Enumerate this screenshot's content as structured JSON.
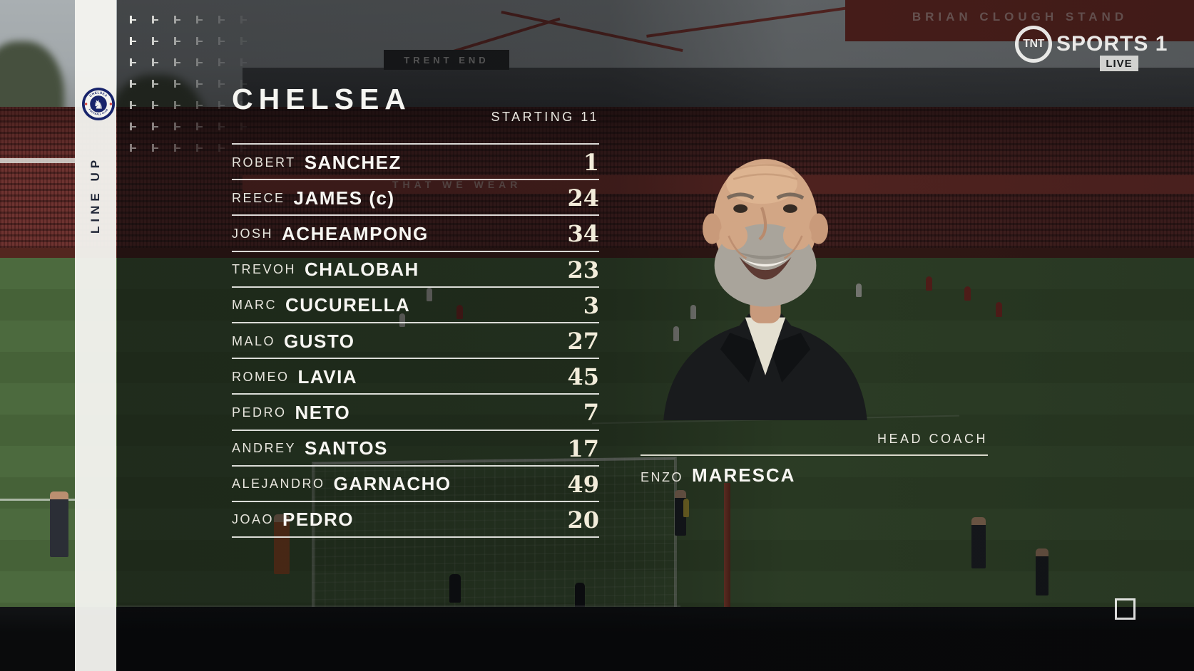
{
  "broadcaster": {
    "network": "TNT",
    "channel": "SPORTS 1",
    "live_label": "LIVE"
  },
  "sidebar": {
    "label": "LINE UP",
    "badge": {
      "top_text": "CHELSEA",
      "bottom_text": "FOOTBALL CLUB"
    }
  },
  "lineup": {
    "team": "CHELSEA",
    "list_label": "STARTING 11",
    "captain_suffix": "(c)",
    "players": [
      {
        "first": "ROBERT",
        "last": "SANCHEZ",
        "number": "1",
        "captain": false
      },
      {
        "first": "REECE",
        "last": "JAMES",
        "number": "24",
        "captain": true
      },
      {
        "first": "JOSH",
        "last": "ACHEAMPONG",
        "number": "34",
        "captain": false
      },
      {
        "first": "TREVOH",
        "last": "CHALOBAH",
        "number": "23",
        "captain": false
      },
      {
        "first": "MARC",
        "last": "CUCURELLA",
        "number": "3",
        "captain": false
      },
      {
        "first": "MALO",
        "last": "GUSTO",
        "number": "27",
        "captain": false
      },
      {
        "first": "ROMEO",
        "last": "LAVIA",
        "number": "45",
        "captain": false
      },
      {
        "first": "PEDRO",
        "last": "NETO",
        "number": "7",
        "captain": false
      },
      {
        "first": "ANDREY",
        "last": "SANTOS",
        "number": "17",
        "captain": false
      },
      {
        "first": "ALEJANDRO",
        "last": "GARNACHO",
        "number": "49",
        "captain": false
      },
      {
        "first": "JOAO",
        "last": "PEDRO",
        "number": "20",
        "captain": false
      }
    ]
  },
  "coach": {
    "label": "HEAD COACH",
    "first_name": "ENZO",
    "last_name": "MARESCA"
  },
  "stadium": {
    "trent_end_sign": "TRENT END",
    "stand_sign": "BRIAN CLOUGH STAND",
    "banner_fragment": "THAT WE WEAR"
  },
  "colors": {
    "chelsea_navy": "#18246b",
    "badge_red": "#d6453c",
    "stand_red": "#7c3330",
    "pitch_green": "#4c6a3e",
    "number_cream": "#f2ecda",
    "live_badge_bg": "#d9d9d7",
    "live_badge_text": "#17191b"
  }
}
